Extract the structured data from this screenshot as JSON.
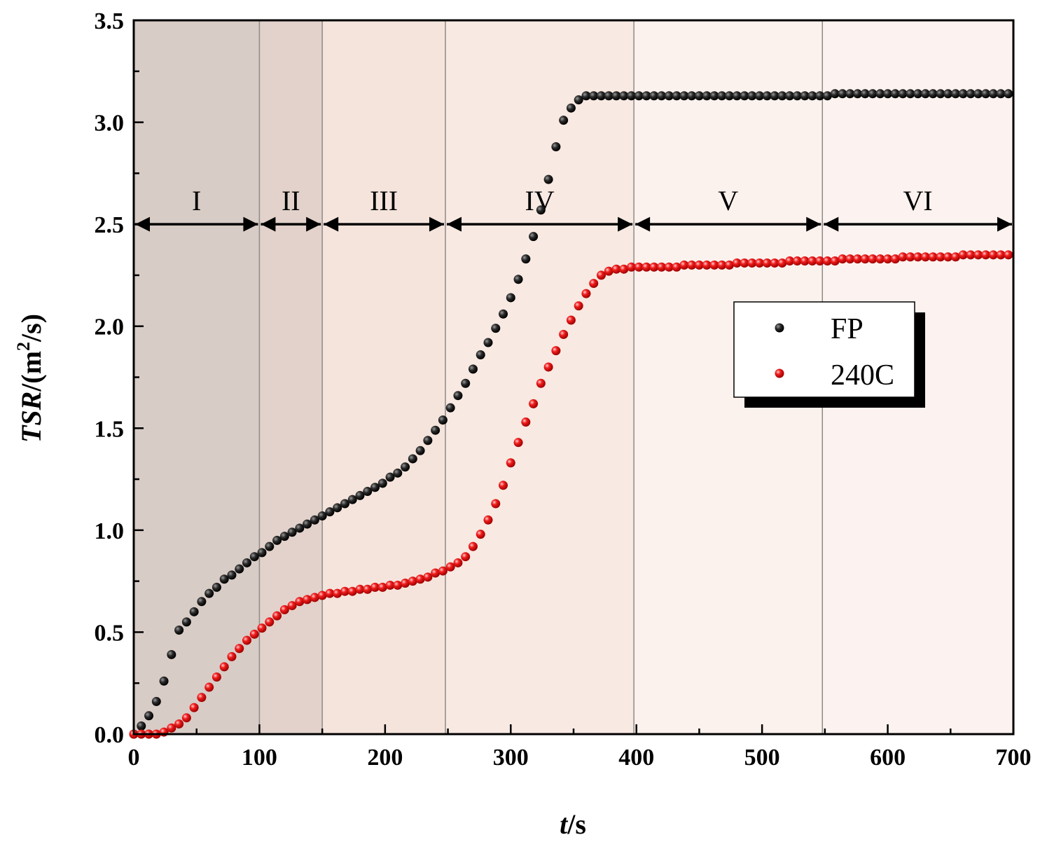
{
  "chart_data": {
    "type": "scatter",
    "title": "",
    "xlabel": "t/s",
    "xlabel_italic": "t",
    "xlabel_unit": "/s",
    "ylabel": "TSR/(m2/s)",
    "ylabel_italic": "TSR",
    "ylabel_unit_pre": "/(m",
    "ylabel_sup": "2",
    "ylabel_unit_post": "/s)",
    "xlim": [
      0,
      700
    ],
    "ylim": [
      0,
      3.5
    ],
    "xticks": [
      0,
      100,
      200,
      300,
      400,
      500,
      600,
      700
    ],
    "xtick_labels": [
      "0",
      "100",
      "200",
      "300",
      "400",
      "500",
      "600",
      "700"
    ],
    "yticks": [
      0,
      0.5,
      1.0,
      1.5,
      2.0,
      2.5,
      3.0,
      3.5
    ],
    "ytick_labels": [
      "0.0",
      "0.5",
      "1.0",
      "1.5",
      "2.0",
      "2.5",
      "3.0",
      "3.5"
    ],
    "stages": [
      {
        "label": "I",
        "start": 0,
        "end": 100,
        "color": "#d8ccc6"
      },
      {
        "label": "II",
        "start": 100,
        "end": 150,
        "color": "#e2d2cb"
      },
      {
        "label": "III",
        "start": 150,
        "end": 248,
        "color": "#f5e4dc"
      },
      {
        "label": "IV",
        "start": 248,
        "end": 398,
        "color": "#f8e9e2"
      },
      {
        "label": "V",
        "start": 398,
        "end": 548,
        "color": "#fbf1ed"
      },
      {
        "label": "VI",
        "start": 548,
        "end": 700,
        "color": "#fcf2ef"
      }
    ],
    "arrow_y": 2.5,
    "legend_position": "center-right",
    "series": [
      {
        "name": "FP",
        "color": "#1a1a1a",
        "x": [
          0,
          6,
          12,
          18,
          24,
          30,
          36,
          42,
          48,
          54,
          60,
          66,
          72,
          78,
          84,
          90,
          96,
          102,
          108,
          114,
          120,
          126,
          132,
          138,
          144,
          150,
          156,
          162,
          168,
          174,
          180,
          186,
          192,
          198,
          204,
          210,
          216,
          222,
          228,
          234,
          240,
          246,
          252,
          258,
          264,
          270,
          276,
          282,
          288,
          294,
          300,
          306,
          312,
          318,
          324,
          330,
          336,
          342,
          348,
          354,
          360,
          366,
          372,
          378,
          384,
          390,
          396,
          402,
          408,
          414,
          420,
          426,
          432,
          438,
          444,
          450,
          456,
          462,
          468,
          474,
          480,
          486,
          492,
          498,
          504,
          510,
          516,
          522,
          528,
          534,
          540,
          546,
          552,
          558,
          564,
          570,
          576,
          582,
          588,
          594,
          600,
          606,
          612,
          618,
          624,
          630,
          636,
          642,
          648,
          654,
          660,
          666,
          672,
          678,
          684,
          690,
          696
        ],
        "y": [
          0.0,
          0.04,
          0.09,
          0.16,
          0.26,
          0.39,
          0.51,
          0.55,
          0.6,
          0.65,
          0.69,
          0.72,
          0.76,
          0.78,
          0.81,
          0.84,
          0.87,
          0.89,
          0.92,
          0.95,
          0.97,
          0.99,
          1.01,
          1.03,
          1.05,
          1.07,
          1.09,
          1.11,
          1.13,
          1.15,
          1.17,
          1.19,
          1.21,
          1.23,
          1.26,
          1.28,
          1.31,
          1.35,
          1.39,
          1.44,
          1.49,
          1.54,
          1.6,
          1.66,
          1.72,
          1.79,
          1.86,
          1.92,
          1.99,
          2.06,
          2.14,
          2.23,
          2.33,
          2.44,
          2.57,
          2.72,
          2.88,
          3.01,
          3.07,
          3.11,
          3.13,
          3.13,
          3.13,
          3.13,
          3.13,
          3.13,
          3.13,
          3.13,
          3.13,
          3.13,
          3.13,
          3.13,
          3.13,
          3.13,
          3.13,
          3.13,
          3.13,
          3.13,
          3.13,
          3.13,
          3.13,
          3.13,
          3.13,
          3.13,
          3.13,
          3.13,
          3.13,
          3.13,
          3.13,
          3.13,
          3.13,
          3.13,
          3.13,
          3.14,
          3.14,
          3.14,
          3.14,
          3.14,
          3.14,
          3.14,
          3.14,
          3.14,
          3.14,
          3.14,
          3.14,
          3.14,
          3.14,
          3.14,
          3.14,
          3.14,
          3.14,
          3.14,
          3.14,
          3.14,
          3.14,
          3.14,
          3.14
        ]
      },
      {
        "name": "240C",
        "color": "#e8141e",
        "x": [
          0,
          6,
          12,
          18,
          24,
          30,
          36,
          42,
          48,
          54,
          60,
          66,
          72,
          78,
          84,
          90,
          96,
          102,
          108,
          114,
          120,
          126,
          132,
          138,
          144,
          150,
          156,
          162,
          168,
          174,
          180,
          186,
          192,
          198,
          204,
          210,
          216,
          222,
          228,
          234,
          240,
          246,
          252,
          258,
          264,
          270,
          276,
          282,
          288,
          294,
          300,
          306,
          312,
          318,
          324,
          330,
          336,
          342,
          348,
          354,
          360,
          366,
          372,
          378,
          384,
          390,
          396,
          402,
          408,
          414,
          420,
          426,
          432,
          438,
          444,
          450,
          456,
          462,
          468,
          474,
          480,
          486,
          492,
          498,
          504,
          510,
          516,
          522,
          528,
          534,
          540,
          546,
          552,
          558,
          564,
          570,
          576,
          582,
          588,
          594,
          600,
          606,
          612,
          618,
          624,
          630,
          636,
          642,
          648,
          654,
          660,
          666,
          672,
          678,
          684,
          690,
          696
        ],
        "y": [
          0.0,
          0.0,
          0.0,
          0.0,
          0.01,
          0.03,
          0.05,
          0.08,
          0.13,
          0.18,
          0.23,
          0.28,
          0.33,
          0.38,
          0.42,
          0.46,
          0.49,
          0.52,
          0.55,
          0.58,
          0.61,
          0.63,
          0.65,
          0.66,
          0.67,
          0.68,
          0.69,
          0.69,
          0.7,
          0.7,
          0.71,
          0.71,
          0.72,
          0.72,
          0.73,
          0.73,
          0.74,
          0.75,
          0.76,
          0.77,
          0.79,
          0.8,
          0.82,
          0.84,
          0.87,
          0.92,
          0.98,
          1.05,
          1.13,
          1.22,
          1.33,
          1.43,
          1.53,
          1.62,
          1.72,
          1.8,
          1.88,
          1.96,
          2.03,
          2.1,
          2.16,
          2.21,
          2.25,
          2.27,
          2.28,
          2.28,
          2.29,
          2.29,
          2.29,
          2.29,
          2.29,
          2.29,
          2.29,
          2.3,
          2.3,
          2.3,
          2.3,
          2.3,
          2.3,
          2.3,
          2.31,
          2.31,
          2.31,
          2.31,
          2.31,
          2.31,
          2.31,
          2.32,
          2.32,
          2.32,
          2.32,
          2.32,
          2.32,
          2.32,
          2.33,
          2.33,
          2.33,
          2.33,
          2.33,
          2.33,
          2.33,
          2.33,
          2.34,
          2.34,
          2.34,
          2.34,
          2.34,
          2.34,
          2.34,
          2.34,
          2.35,
          2.35,
          2.35,
          2.35,
          2.35,
          2.35,
          2.35
        ]
      }
    ]
  }
}
